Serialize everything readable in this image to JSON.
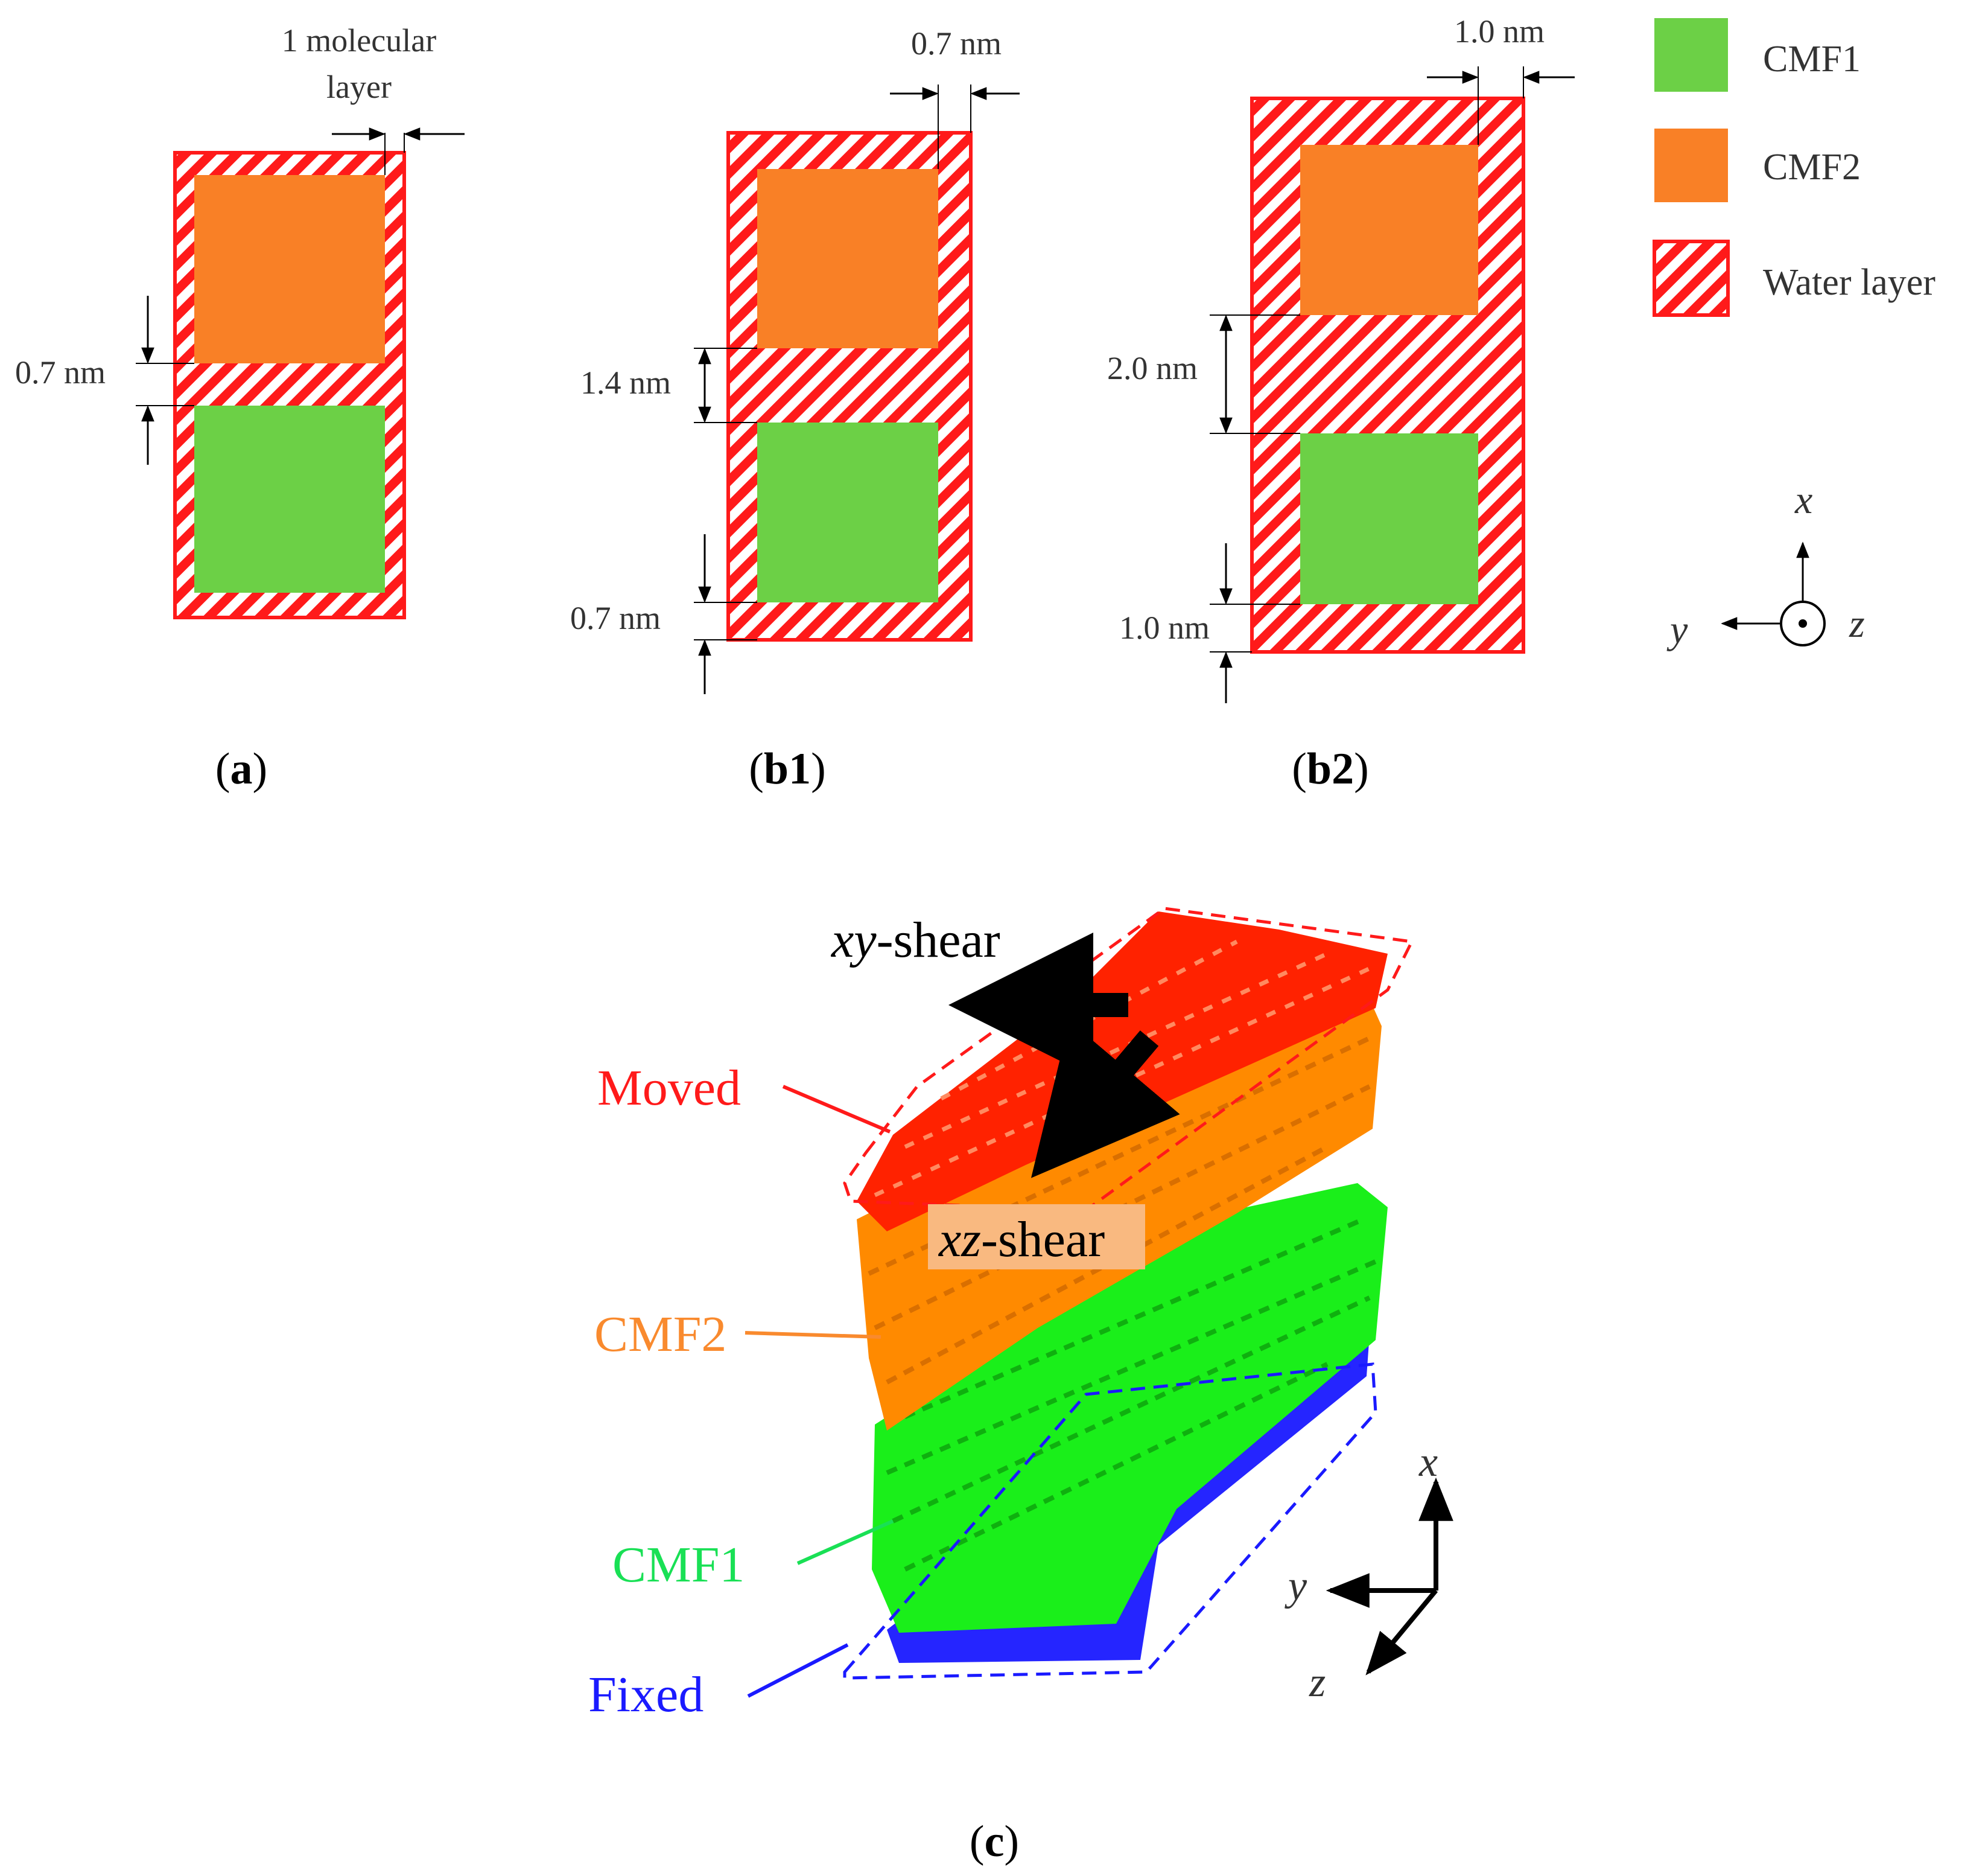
{
  "colors": {
    "cmf1": "#6cd046",
    "cmf2": "#f98026",
    "water": "#ff1a1a",
    "moved": "#ff1a1a",
    "cmf2_label": "#f98a2e",
    "cmf1_label": "#19e055",
    "fixed": "#1a1aff",
    "cmf1_atoms": "#1aef1a",
    "cmf2_atoms": "#ff8a00",
    "moved_atoms": "#ff2200",
    "fixed_atoms": "#2525ff"
  },
  "panel_a": {
    "top_label": "1 molecular",
    "top_label_2": "layer",
    "gap_label": "0.7 nm",
    "caption_open": "(",
    "caption_letter": "a",
    "caption_close": ")"
  },
  "panel_b1": {
    "top_label": "0.7 nm",
    "gap_label": "1.4 nm",
    "bottom_label": "0.7 nm",
    "caption_open": "(",
    "caption_letter": "b1",
    "caption_close": ")"
  },
  "panel_b2": {
    "top_label": "1.0 nm",
    "gap_label": "2.0 nm",
    "bottom_label": "1.0 nm",
    "caption_open": "(",
    "caption_letter": "b2",
    "caption_close": ")"
  },
  "legend": {
    "items": [
      {
        "label": "CMF1",
        "swatch": "cmf1"
      },
      {
        "label": "CMF2",
        "swatch": "cmf2"
      },
      {
        "label": "Water layer",
        "swatch": "water-hatch"
      }
    ]
  },
  "axes_2d": {
    "x": "x",
    "y": "y",
    "z": "z"
  },
  "panel_c": {
    "xy_shear_italic": "xy",
    "xy_shear_rest": "-shear",
    "xz_shear_italic": "xz",
    "xz_shear_rest": "-shear",
    "moved": "Moved",
    "cmf2": "CMF2",
    "cmf1": "CMF1",
    "fixed": "Fixed",
    "axes": {
      "x": "x",
      "y": "y",
      "z": "z"
    },
    "caption_open": "(",
    "caption_letter": "c",
    "caption_close": ")"
  }
}
